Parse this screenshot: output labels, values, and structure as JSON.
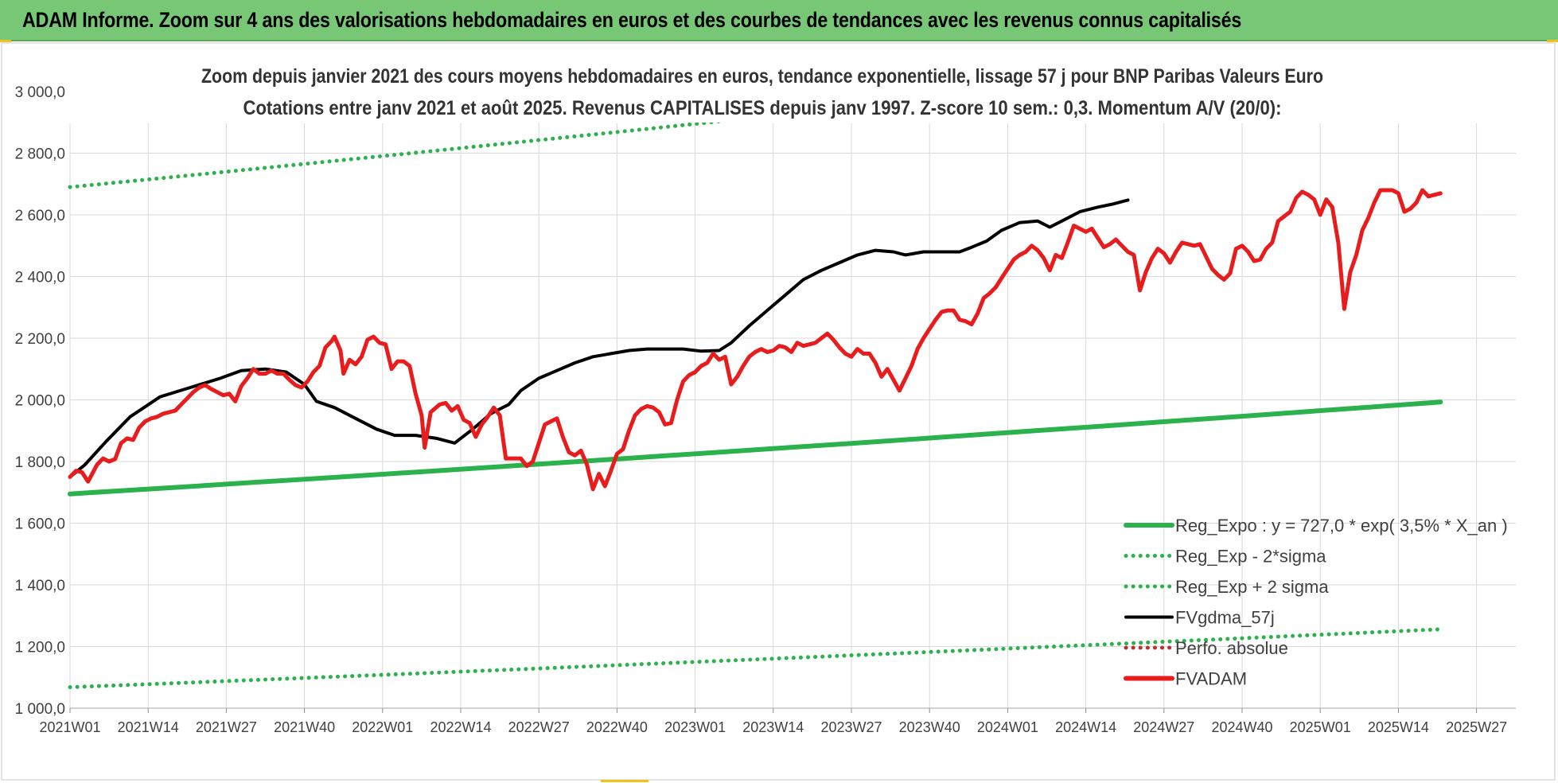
{
  "header": {
    "title": "ADAM Informe. Zoom sur 4 ans des valorisations hebdomadaires en euros et des courbes de tendances avec les revenus connus capitalisés"
  },
  "chart_data": {
    "type": "line",
    "title": "Zoom depuis janvier 2021 des cours moyens hebdomadaires en euros, tendance exponentielle, lissage 57 j pour BNP Paribas Valeurs Euro",
    "subtitle": "Cotations entre janv 2021 et août 2025. Revenus CAPITALISES depuis janv 1997. Z-score 10 sem.: 0,3. Momentum A/V (20/0):",
    "ylim": [
      1000,
      3000
    ],
    "y_ticks": [
      "3 000,0",
      "2 800,0",
      "2 600,0",
      "2 400,0",
      "2 200,0",
      "2 000,0",
      "1 800,0",
      "1 600,0",
      "1 400,0",
      "1 200,0",
      "1 000,0"
    ],
    "x_ticks": [
      "2021W01",
      "2021W14",
      "2021W27",
      "2021W40",
      "2022W01",
      "2022W14",
      "2022W27",
      "2022W40",
      "2023W01",
      "2023W14",
      "2023W27",
      "2023W40",
      "2024W01",
      "2024W14",
      "2024W27",
      "2024W40",
      "2025W01",
      "2025W14",
      "2025W27"
    ],
    "n_weeks": 240,
    "grid": true,
    "legend_position": "bottom-right",
    "series": [
      {
        "name": "Reg_Expo : y = 727,0 * exp( 3,5% *  X_an )",
        "color": "#2bb24c",
        "style": "solid",
        "start": 1695,
        "end": 1993
      },
      {
        "name": "Reg_Exp - 2*sigma",
        "color": "#2bb24c",
        "style": "dotted",
        "start": 1068,
        "end": 1256
      },
      {
        "name": "Reg_Exp + 2 sigma",
        "color": "#2bb24c",
        "style": "dotted",
        "start": 2690,
        "end": 3160
      },
      {
        "name": "FVgdma_57j",
        "color": "#000000",
        "style": "solid",
        "points": [
          [
            0,
            1750
          ],
          [
            5,
            1790
          ],
          [
            12,
            1865
          ],
          [
            20,
            1945
          ],
          [
            30,
            2010
          ],
          [
            40,
            2040
          ],
          [
            50,
            2070
          ],
          [
            57,
            2095
          ],
          [
            65,
            2100
          ],
          [
            72,
            2090
          ],
          [
            78,
            2050
          ],
          [
            82,
            1995
          ],
          [
            88,
            1975
          ],
          [
            95,
            1940
          ],
          [
            102,
            1905
          ],
          [
            108,
            1885
          ],
          [
            115,
            1885
          ],
          [
            122,
            1875
          ],
          [
            128,
            1860
          ],
          [
            134,
            1905
          ],
          [
            140,
            1955
          ],
          [
            146,
            1985
          ],
          [
            150,
            2030
          ],
          [
            156,
            2070
          ],
          [
            162,
            2095
          ],
          [
            168,
            2120
          ],
          [
            174,
            2140
          ],
          [
            180,
            2150
          ],
          [
            186,
            2160
          ],
          [
            192,
            2165
          ],
          [
            198,
            2165
          ],
          [
            204,
            2165
          ],
          [
            210,
            2158
          ],
          [
            216,
            2160
          ],
          [
            220,
            2185
          ],
          [
            226,
            2240
          ],
          [
            232,
            2290
          ],
          [
            238,
            2340
          ],
          [
            244,
            2390
          ],
          [
            250,
            2420
          ],
          [
            256,
            2445
          ],
          [
            262,
            2470
          ],
          [
            268,
            2485
          ],
          [
            274,
            2480
          ],
          [
            278,
            2470
          ],
          [
            284,
            2480
          ],
          [
            290,
            2480
          ],
          [
            296,
            2480
          ],
          [
            300,
            2495
          ],
          [
            305,
            2515
          ],
          [
            310,
            2550
          ],
          [
            316,
            2575
          ],
          [
            322,
            2580
          ],
          [
            326,
            2560
          ],
          [
            330,
            2580
          ],
          [
            336,
            2610
          ],
          [
            342,
            2625
          ],
          [
            347,
            2635
          ],
          [
            352,
            2648
          ]
        ]
      },
      {
        "name": "Perfo. absolue",
        "color": "#b8322e",
        "style": "dotted",
        "points": []
      },
      {
        "name": "FVADAM",
        "color": "#e81c1c",
        "style": "solid",
        "points": [
          [
            0,
            1750
          ],
          [
            2,
            1770
          ],
          [
            4,
            1765
          ],
          [
            6,
            1735
          ],
          [
            9,
            1790
          ],
          [
            11,
            1810
          ],
          [
            13,
            1800
          ],
          [
            15,
            1808
          ],
          [
            17,
            1860
          ],
          [
            19,
            1875
          ],
          [
            21,
            1870
          ],
          [
            23,
            1910
          ],
          [
            25,
            1930
          ],
          [
            27,
            1940
          ],
          [
            29,
            1945
          ],
          [
            31,
            1955
          ],
          [
            33,
            1960
          ],
          [
            35,
            1965
          ],
          [
            37,
            1985
          ],
          [
            39,
            2005
          ],
          [
            41,
            2025
          ],
          [
            43,
            2040
          ],
          [
            45,
            2048
          ],
          [
            47,
            2035
          ],
          [
            49,
            2025
          ],
          [
            51,
            2015
          ],
          [
            53,
            2020
          ],
          [
            55,
            1995
          ],
          [
            57,
            2045
          ],
          [
            59,
            2070
          ],
          [
            61,
            2100
          ],
          [
            63,
            2085
          ],
          [
            65,
            2085
          ],
          [
            67,
            2095
          ],
          [
            69,
            2085
          ],
          [
            71,
            2085
          ],
          [
            73,
            2065
          ],
          [
            75,
            2048
          ],
          [
            77,
            2040
          ],
          [
            79,
            2060
          ],
          [
            81,
            2090
          ],
          [
            83,
            2110
          ],
          [
            85,
            2170
          ],
          [
            87,
            2190
          ],
          [
            88,
            2205
          ],
          [
            90,
            2160
          ],
          [
            91,
            2085
          ],
          [
            93,
            2130
          ],
          [
            95,
            2115
          ],
          [
            97,
            2140
          ],
          [
            99,
            2195
          ],
          [
            101,
            2205
          ],
          [
            103,
            2185
          ],
          [
            105,
            2180
          ],
          [
            107,
            2100
          ],
          [
            109,
            2125
          ],
          [
            111,
            2125
          ],
          [
            113,
            2110
          ],
          [
            115,
            2020
          ],
          [
            117,
            1950
          ],
          [
            118,
            1845
          ],
          [
            120,
            1960
          ],
          [
            123,
            1985
          ],
          [
            125,
            1990
          ],
          [
            127,
            1965
          ],
          [
            129,
            1980
          ],
          [
            131,
            1935
          ],
          [
            133,
            1925
          ],
          [
            135,
            1880
          ],
          [
            137,
            1920
          ],
          [
            139,
            1945
          ],
          [
            141,
            1975
          ],
          [
            143,
            1950
          ],
          [
            145,
            1810
          ],
          [
            148,
            1810
          ],
          [
            150,
            1810
          ],
          [
            152,
            1785
          ],
          [
            154,
            1800
          ],
          [
            156,
            1860
          ],
          [
            158,
            1920
          ],
          [
            160,
            1930
          ],
          [
            162,
            1940
          ],
          [
            164,
            1880
          ],
          [
            166,
            1830
          ],
          [
            168,
            1820
          ],
          [
            170,
            1835
          ],
          [
            172,
            1790
          ],
          [
            174,
            1710
          ],
          [
            176,
            1760
          ],
          [
            178,
            1720
          ],
          [
            180,
            1770
          ],
          [
            182,
            1825
          ],
          [
            184,
            1840
          ],
          [
            186,
            1900
          ],
          [
            188,
            1950
          ],
          [
            190,
            1970
          ],
          [
            192,
            1980
          ],
          [
            194,
            1975
          ],
          [
            196,
            1960
          ],
          [
            198,
            1920
          ],
          [
            200,
            1925
          ],
          [
            202,
            2000
          ],
          [
            204,
            2060
          ],
          [
            206,
            2080
          ],
          [
            208,
            2090
          ],
          [
            210,
            2110
          ],
          [
            212,
            2120
          ],
          [
            214,
            2150
          ],
          [
            216,
            2130
          ],
          [
            218,
            2140
          ],
          [
            220,
            2050
          ],
          [
            222,
            2075
          ],
          [
            224,
            2110
          ],
          [
            226,
            2140
          ],
          [
            228,
            2155
          ],
          [
            230,
            2165
          ],
          [
            232,
            2155
          ],
          [
            234,
            2160
          ],
          [
            236,
            2175
          ],
          [
            238,
            2170
          ],
          [
            240,
            2155
          ],
          [
            242,
            2185
          ],
          [
            244,
            2175
          ],
          [
            246,
            2180
          ],
          [
            248,
            2185
          ],
          [
            250,
            2200
          ],
          [
            252,
            2215
          ],
          [
            254,
            2195
          ],
          [
            256,
            2170
          ],
          [
            258,
            2150
          ],
          [
            260,
            2140
          ],
          [
            262,
            2165
          ],
          [
            264,
            2150
          ],
          [
            266,
            2150
          ],
          [
            268,
            2120
          ],
          [
            270,
            2075
          ],
          [
            272,
            2100
          ],
          [
            274,
            2065
          ],
          [
            276,
            2030
          ],
          [
            278,
            2070
          ],
          [
            280,
            2110
          ],
          [
            282,
            2165
          ],
          [
            284,
            2200
          ],
          [
            286,
            2230
          ],
          [
            288,
            2260
          ],
          [
            290,
            2285
          ],
          [
            292,
            2290
          ],
          [
            294,
            2290
          ],
          [
            296,
            2260
          ],
          [
            298,
            2255
          ],
          [
            300,
            2245
          ],
          [
            302,
            2280
          ],
          [
            304,
            2330
          ],
          [
            306,
            2345
          ],
          [
            308,
            2365
          ],
          [
            310,
            2395
          ],
          [
            312,
            2425
          ],
          [
            314,
            2455
          ],
          [
            316,
            2470
          ],
          [
            318,
            2480
          ],
          [
            320,
            2500
          ],
          [
            322,
            2485
          ],
          [
            324,
            2460
          ],
          [
            326,
            2420
          ],
          [
            328,
            2470
          ],
          [
            330,
            2460
          ],
          [
            332,
            2510
          ],
          [
            334,
            2565
          ],
          [
            336,
            2555
          ],
          [
            338,
            2545
          ],
          [
            340,
            2555
          ],
          [
            342,
            2525
          ],
          [
            344,
            2495
          ],
          [
            346,
            2505
          ],
          [
            348,
            2520
          ],
          [
            350,
            2500
          ],
          [
            352,
            2480
          ],
          [
            354,
            2470
          ],
          [
            356,
            2355
          ],
          [
            358,
            2415
          ],
          [
            360,
            2460
          ],
          [
            362,
            2490
          ],
          [
            364,
            2475
          ],
          [
            366,
            2445
          ],
          [
            368,
            2480
          ],
          [
            370,
            2510
          ],
          [
            372,
            2505
          ],
          [
            374,
            2500
          ],
          [
            376,
            2505
          ],
          [
            378,
            2465
          ],
          [
            380,
            2425
          ],
          [
            382,
            2405
          ],
          [
            384,
            2390
          ],
          [
            386,
            2410
          ],
          [
            388,
            2490
          ],
          [
            390,
            2500
          ],
          [
            392,
            2480
          ],
          [
            394,
            2450
          ],
          [
            396,
            2455
          ],
          [
            398,
            2490
          ],
          [
            400,
            2510
          ],
          [
            402,
            2580
          ],
          [
            404,
            2595
          ],
          [
            406,
            2610
          ],
          [
            408,
            2655
          ],
          [
            410,
            2675
          ],
          [
            412,
            2665
          ],
          [
            414,
            2650
          ],
          [
            416,
            2600
          ],
          [
            418,
            2650
          ],
          [
            420,
            2625
          ],
          [
            422,
            2510
          ],
          [
            424,
            2295
          ],
          [
            426,
            2415
          ],
          [
            428,
            2470
          ],
          [
            430,
            2550
          ],
          [
            432,
            2590
          ],
          [
            434,
            2640
          ],
          [
            436,
            2680
          ],
          [
            438,
            2680
          ],
          [
            440,
            2680
          ],
          [
            442,
            2670
          ],
          [
            444,
            2610
          ],
          [
            446,
            2620
          ],
          [
            448,
            2640
          ],
          [
            450,
            2680
          ],
          [
            452,
            2660
          ],
          [
            454,
            2665
          ],
          [
            456,
            2670
          ]
        ]
      }
    ]
  }
}
